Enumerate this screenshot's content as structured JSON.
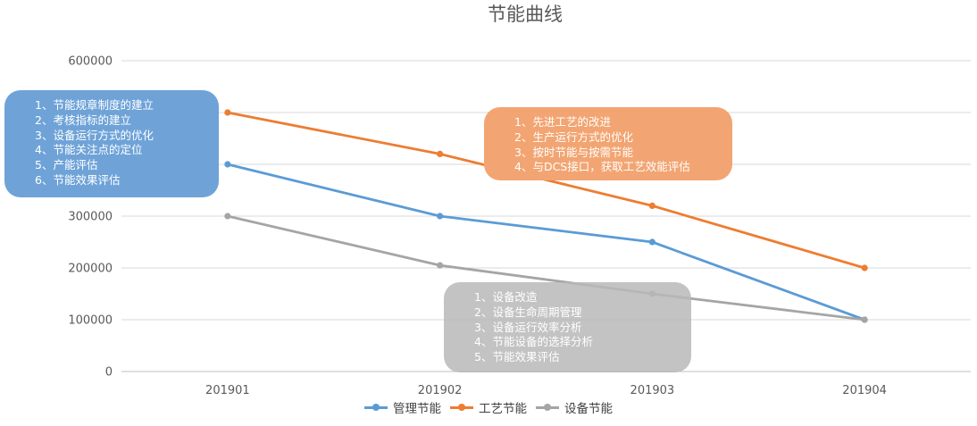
{
  "chart_data": {
    "type": "line",
    "title": "节能曲线",
    "categories": [
      "201901",
      "201902",
      "201903",
      "201904"
    ],
    "ylim": [
      0,
      600000
    ],
    "yticks": [
      0,
      100000,
      200000,
      300000,
      400000,
      500000,
      600000
    ],
    "ytick_labels": [
      "0",
      "100000",
      "200000",
      "300000",
      "",
      "",
      "600000"
    ],
    "grid": true,
    "legend_position": "bottom",
    "series": [
      {
        "name": "管理节能",
        "color": "#5b9bd5",
        "values": [
          400000,
          300000,
          250000,
          100000
        ]
      },
      {
        "name": "工艺节能",
        "color": "#ed7d31",
        "values": [
          500000,
          420000,
          320000,
          200000
        ]
      },
      {
        "name": "设备节能",
        "color": "#a5a5a5",
        "values": [
          300000,
          205000,
          150000,
          100000
        ]
      }
    ]
  },
  "annotations": {
    "management": [
      "1、节能规章制度的建立",
      "2、考核指标的建立",
      "3、设备运行方式的优化",
      "4、节能关注点的定位",
      "5、产能评估",
      "6、节能效果评估"
    ],
    "process": [
      "1、先进工艺的改进",
      "2、生产运行方式的优化",
      "3、按时节能与按需节能",
      "4、与DCS接口，获取工艺效能评估"
    ],
    "equipment": [
      "1、设备改造",
      "2、设备生命周期管理",
      "3、设备运行效率分析",
      "4、节能设备的选择分析",
      "5、节能效果评估"
    ]
  }
}
